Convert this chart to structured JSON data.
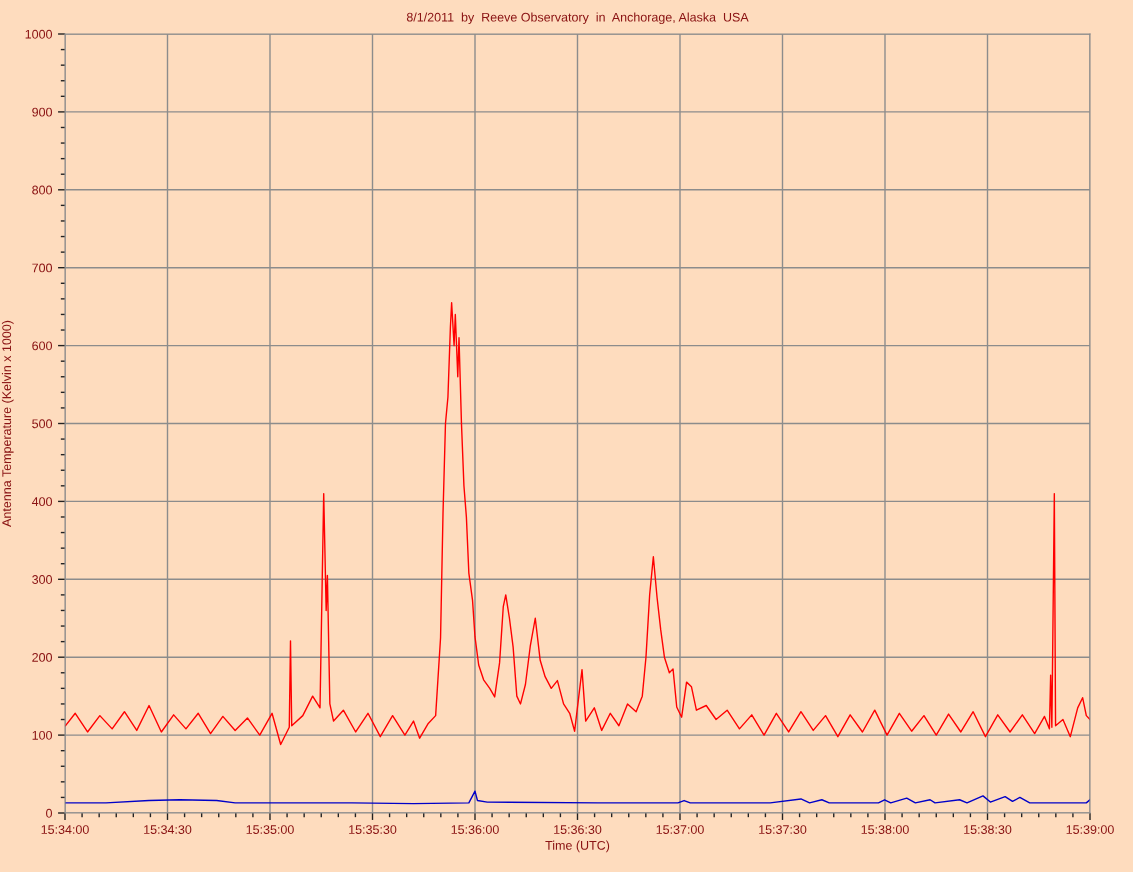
{
  "chart_data": {
    "type": "line",
    "title": "8/1/2011  by  Reeve Observatory  in  Anchorage, Alaska  USA",
    "xlabel": "Time (UTC)",
    "ylabel": "Antenna Temperature (Kelvin x 1000)",
    "series": [
      {
        "color": "#ff0000",
        "x": [
          15.5667,
          15.5675,
          15.5685,
          15.5695,
          15.5705,
          15.5715,
          15.5725,
          15.5735,
          15.5745,
          15.5755,
          15.5765,
          15.5775,
          15.5785,
          15.5795,
          15.5805,
          15.5815,
          15.5825,
          15.5835,
          15.5842,
          15.5849,
          15.585,
          15.5851,
          15.586,
          15.5868,
          15.5874,
          15.5877,
          15.5879,
          15.588,
          15.5882,
          15.5885,
          15.5893,
          15.5903,
          15.5913,
          15.5923,
          15.5933,
          15.5943,
          15.595,
          15.5955,
          15.5962,
          15.5968,
          15.5972,
          15.5974,
          15.5976,
          15.5978,
          15.598,
          15.5981,
          15.5983,
          15.5984,
          15.5986,
          15.5987,
          15.5989,
          15.5991,
          15.5993,
          15.5995,
          15.5998,
          15.6,
          15.6003,
          15.6007,
          15.6012,
          15.6016,
          15.602,
          15.6023,
          15.6025,
          15.6028,
          15.6031,
          15.6034,
          15.6037,
          15.6041,
          15.6045,
          15.6049,
          15.6053,
          15.6057,
          15.6062,
          15.6067,
          15.6072,
          15.6077,
          15.6081,
          15.6087,
          15.609,
          15.6097,
          15.6103,
          15.611,
          15.6117,
          15.6124,
          15.6131,
          15.6136,
          15.6139,
          15.6142,
          15.6145,
          15.6148,
          15.6151,
          15.6154,
          15.6158,
          15.6161,
          15.6164,
          15.6168,
          15.6172,
          15.6176,
          15.618,
          15.6188,
          15.6196,
          15.6205,
          15.6215,
          15.6225,
          15.6235,
          15.6245,
          15.6255,
          15.6265,
          15.6275,
          15.6285,
          15.6295,
          15.6305,
          15.6315,
          15.6325,
          15.6335,
          15.6345,
          15.6355,
          15.6365,
          15.6375,
          15.6385,
          15.6395,
          15.6405,
          15.6415,
          15.6425,
          15.6435,
          15.6445,
          15.6455,
          15.6463,
          15.6467,
          15.6468,
          15.6469,
          15.6471,
          15.6472,
          15.6478,
          15.6484,
          15.649,
          15.6494,
          15.6497,
          15.65
        ],
        "values": [
          112,
          128,
          104,
          125,
          108,
          130,
          106,
          138,
          104,
          126,
          108,
          128,
          102,
          124,
          106,
          122,
          100,
          128,
          88,
          110,
          221,
          112,
          125,
          150,
          135,
          410,
          260,
          305,
          140,
          118,
          132,
          104,
          128,
          98,
          125,
          100,
          118,
          96,
          115,
          125,
          225,
          385,
          500,
          534,
          624,
          655,
          600,
          640,
          560,
          610,
          500,
          420,
          380,
          308,
          273,
          226,
          190,
          171,
          160,
          149,
          193,
          265,
          280,
          250,
          213,
          150,
          140,
          165,
          215,
          250,
          196,
          175,
          160,
          170,
          140,
          128,
          105,
          184,
          118,
          135,
          106,
          128,
          112,
          140,
          130,
          150,
          200,
          280,
          329,
          277,
          235,
          200,
          180,
          185,
          136,
          123,
          168,
          162,
          132,
          138,
          120,
          132,
          108,
          126,
          100,
          128,
          104,
          130,
          106,
          125,
          98,
          126,
          104,
          132,
          100,
          128,
          105,
          125,
          100,
          127,
          104,
          130,
          98,
          126,
          104,
          126,
          102,
          124,
          108,
          177,
          110,
          410,
          112,
          120,
          98,
          135,
          148,
          125,
          120
        ]
      },
      {
        "color": "#0000c8",
        "x": [
          15.5667,
          15.57,
          15.5735,
          15.576,
          15.579,
          15.5805,
          15.585,
          15.59,
          15.595,
          15.5995,
          15.5998,
          15.6,
          15.6002,
          15.601,
          15.61,
          15.6165,
          15.617,
          15.6175,
          15.624,
          15.6265,
          15.6272,
          15.6282,
          15.6288,
          15.6328,
          15.6333,
          15.6338,
          15.6351,
          15.6358,
          15.637,
          15.6374,
          15.6394,
          15.64,
          15.6413,
          15.6419,
          15.6431,
          15.6437,
          15.6443,
          15.6451,
          15.6497,
          15.65
        ],
        "values": [
          13,
          13,
          16,
          17,
          16,
          13,
          13,
          13,
          12,
          13,
          22,
          28,
          16,
          14,
          13,
          13,
          16,
          13,
          13,
          18,
          13,
          17,
          13,
          13,
          17,
          13,
          19,
          13,
          17,
          13,
          17,
          13,
          22,
          14,
          21,
          15,
          20,
          13,
          13,
          17
        ]
      }
    ],
    "xlim": [
      15.566667,
      15.65
    ],
    "xticks": [
      {
        "value": 15.566667,
        "label": "15:34:00"
      },
      {
        "value": 15.575,
        "label": "15:34:30"
      },
      {
        "value": 15.583333,
        "label": "15:35:00"
      },
      {
        "value": 15.591667,
        "label": "15:35:30"
      },
      {
        "value": 15.6,
        "label": "15:36:00"
      },
      {
        "value": 15.608333,
        "label": "15:36:30"
      },
      {
        "value": 15.616667,
        "label": "15:37:00"
      },
      {
        "value": 15.625,
        "label": "15:37:30"
      },
      {
        "value": 15.633333,
        "label": "15:38:00"
      },
      {
        "value": 15.641667,
        "label": "15:38:30"
      },
      {
        "value": 15.65,
        "label": "15:39:00"
      }
    ],
    "ylim": [
      0,
      1000
    ],
    "yticks": [
      0,
      100,
      200,
      300,
      400,
      500,
      600,
      700,
      800,
      900,
      1000
    ],
    "grid": true,
    "marker": "none",
    "line_style": "solid"
  }
}
